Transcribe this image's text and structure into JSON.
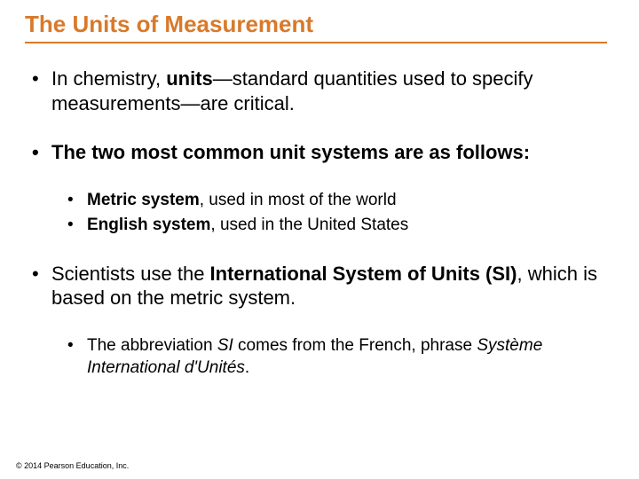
{
  "colors": {
    "accent": "#d87a2a",
    "text": "#000000",
    "background": "#ffffff"
  },
  "typography": {
    "title_fontsize": 26,
    "body_fontsize": 22,
    "sub_fontsize": 19,
    "footer_fontsize": 9,
    "family": "Arial"
  },
  "title": "The Units of Measurement",
  "bullets": {
    "b1_pre": "In chemistry, ",
    "b1_bold": "units",
    "b1_post": "—standard quantities used to specify measurements—are critical.",
    "b2": "The two most common unit systems are as follows:",
    "b2a_bold": "Metric system",
    "b2a_rest": ", used in most of the world",
    "b2b_bold": "English system",
    "b2b_rest": ", used in the United States",
    "b3_pre": "Scientists use the ",
    "b3_bold": "International System of Units (SI)",
    "b3_post": ", which is based on the metric system.",
    "b3a_pre": "The abbreviation ",
    "b3a_si": "SI",
    "b3a_mid": " comes from the French, phrase ",
    "b3a_ital": "Système International d'Unités",
    "b3a_end": "."
  },
  "footer": "© 2014 Pearson Education, Inc."
}
